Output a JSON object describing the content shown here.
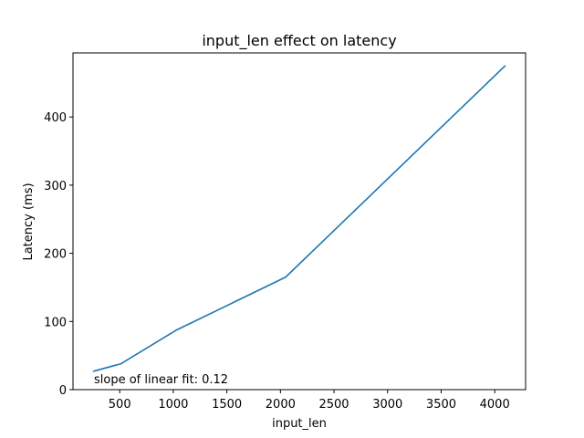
{
  "chart_data": {
    "type": "line",
    "title": "input_len effect on latency",
    "xlabel": "input_len",
    "ylabel": "Latency (ms)",
    "xlim": [
      64,
      4288
    ],
    "ylim": [
      0,
      494
    ],
    "xticks": [
      500,
      1000,
      1500,
      2000,
      2500,
      3000,
      3500,
      4000
    ],
    "yticks": [
      0,
      100,
      200,
      300,
      400
    ],
    "grid": false,
    "series": [
      {
        "color": "#1f77b4",
        "x": [
          256,
          512,
          1024,
          2048,
          4096
        ],
        "y": [
          27,
          38,
          87,
          165,
          475
        ]
      }
    ],
    "annotation": "slope of linear fit: 0.12"
  }
}
